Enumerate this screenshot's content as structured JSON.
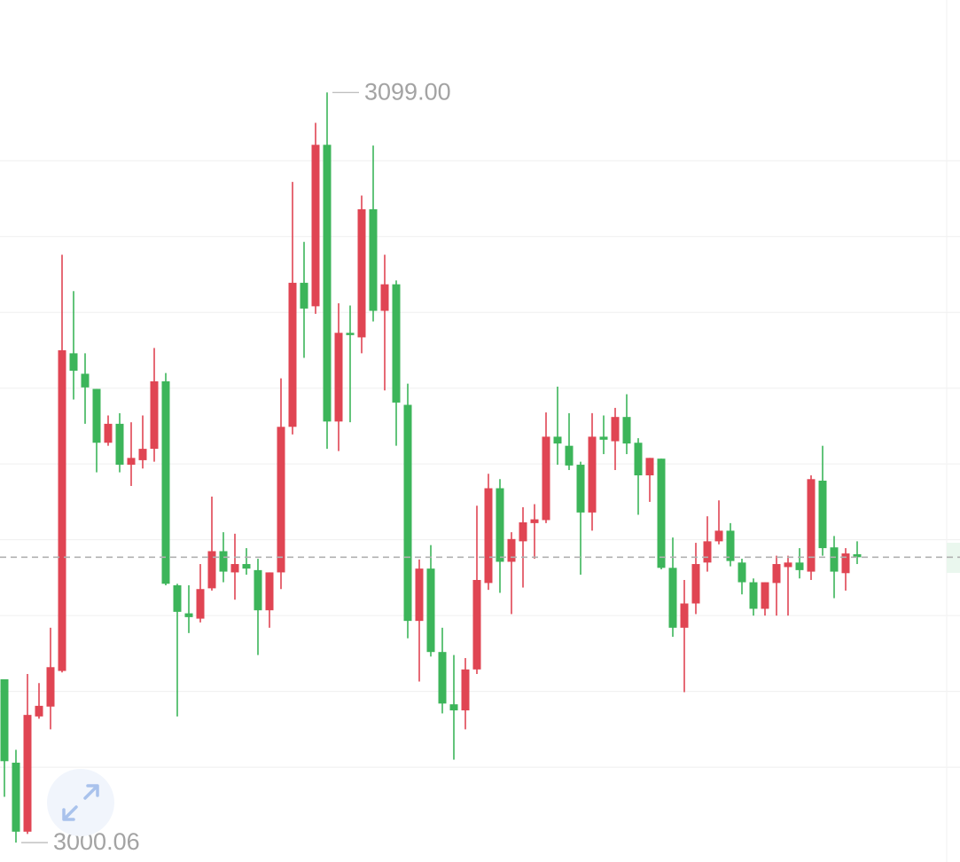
{
  "chart_data": {
    "type": "candlestick",
    "up_color": "#e04553",
    "down_color": "#3cb55a",
    "ylim": [
      2997.5,
      3111.2
    ],
    "grid_lines": [
      3010,
      3020,
      3030,
      3040,
      3050,
      3060,
      3070,
      3080,
      3090
    ],
    "grid": true,
    "open": [
      3021.6,
      3010.6,
      3001.5,
      3016.7,
      3018.0,
      3022.7,
      3064.6,
      3061.9,
      3059.9,
      3052.8,
      3055.3,
      3049.9,
      3050.5,
      3052.0,
      3060.9,
      3034.0,
      3030.3,
      3029.6,
      3033.6,
      3038.5,
      3035.7,
      3036.8,
      3036.0,
      3030.7,
      3035.7,
      3054.9,
      3073.9,
      3070.8,
      3092.1,
      3055.6,
      3067.3,
      3066.7,
      3083.6,
      3070.2,
      3073.7,
      3057.8,
      3029.3,
      3036.2,
      3025.2,
      3018.3,
      3017.5,
      3022.9,
      3034.3,
      3046.8,
      3037.1,
      3039.8,
      3042.2,
      3042.6,
      3053.6,
      3052.4,
      3049.9,
      3043.6,
      3053.6,
      3053.0,
      3056.2,
      3052.8,
      3048.5,
      3050.7,
      3036.3,
      3028.4,
      3031.6,
      3037.0,
      3039.8,
      3041.2,
      3037.0,
      3034.4,
      3030.9,
      3034.3,
      3036.4,
      3037.0,
      3035.8,
      3047.8,
      3039.0,
      3035.6,
      3038.1
    ],
    "high": [
      3021.6,
      3012.3,
      3022.3,
      3021.1,
      3028.4,
      3077.6,
      3072.8,
      3064.6,
      3059.9,
      3056.4,
      3056.7,
      3055.5,
      3056.4,
      3065.3,
      3062.0,
      3034.2,
      3034.0,
      3036.8,
      3045.7,
      3041.0,
      3040.8,
      3038.9,
      3037.5,
      3035.7,
      3061.3,
      3087.2,
      3079.3,
      3095.0,
      3099.0,
      3071.2,
      3070.9,
      3085.4,
      3092.0,
      3077.6,
      3074.2,
      3060.6,
      3037.4,
      3039.3,
      3028.4,
      3024.8,
      3024.4,
      3044.5,
      3048.7,
      3048.0,
      3041.0,
      3044.3,
      3044.7,
      3056.8,
      3060.2,
      3056.7,
      3050.3,
      3056.7,
      3056.4,
      3057.4,
      3059.2,
      3053.4,
      3050.8,
      3050.7,
      3040.3,
      3034.7,
      3039.6,
      3043.1,
      3045.2,
      3042.2,
      3037.5,
      3034.9,
      3034.4,
      3037.9,
      3037.9,
      3038.9,
      3048.5,
      3052.4,
      3040.5,
      3038.9,
      3039.8
    ],
    "low": [
      3006.1,
      3000.06,
      3001.2,
      3016.4,
      3015.0,
      3022.5,
      3058.5,
      3055.3,
      3048.9,
      3052.4,
      3048.9,
      3047.1,
      3049.4,
      3050.3,
      3034.0,
      3016.7,
      3027.7,
      3029.1,
      3033.3,
      3034.4,
      3032.1,
      3035.4,
      3024.8,
      3028.4,
      3033.5,
      3053.9,
      3064.0,
      3069.8,
      3052.0,
      3051.7,
      3055.5,
      3064.6,
      3068.8,
      3059.7,
      3052.4,
      3027.0,
      3021.3,
      3024.6,
      3017.1,
      3011.0,
      3015.0,
      3022.3,
      3033.4,
      3033.0,
      3030.2,
      3033.7,
      3037.5,
      3042.2,
      3049.9,
      3049.2,
      3035.4,
      3041.2,
      3051.3,
      3049.2,
      3051.3,
      3043.3,
      3045.0,
      3036.1,
      3027.2,
      3019.9,
      3030.2,
      3035.8,
      3039.4,
      3036.5,
      3032.8,
      3030.0,
      3030.0,
      3030.0,
      3030.0,
      3034.9,
      3034.7,
      3037.9,
      3032.3,
      3033.3,
      3036.8
    ],
    "close": [
      3010.8,
      3001.5,
      3016.9,
      3018.1,
      3023.2,
      3065.0,
      3062.3,
      3060.1,
      3052.8,
      3055.3,
      3049.9,
      3050.8,
      3052.0,
      3060.9,
      3034.2,
      3030.5,
      3029.8,
      3033.5,
      3038.5,
      3035.8,
      3036.8,
      3036.2,
      3030.7,
      3035.7,
      3054.9,
      3073.9,
      3070.5,
      3092.1,
      3055.6,
      3067.3,
      3067.0,
      3083.6,
      3070.2,
      3073.7,
      3058.1,
      3029.3,
      3036.2,
      3025.2,
      3018.4,
      3017.5,
      3022.9,
      3034.7,
      3046.8,
      3037.1,
      3040.1,
      3042.3,
      3042.7,
      3053.6,
      3052.7,
      3049.8,
      3043.6,
      3053.6,
      3053.2,
      3056.2,
      3052.7,
      3048.5,
      3050.8,
      3036.3,
      3028.4,
      3031.6,
      3036.8,
      3039.8,
      3041.2,
      3037.2,
      3034.4,
      3030.9,
      3034.4,
      3036.8,
      3037.0,
      3036.0,
      3048.0,
      3038.9,
      3035.8,
      3038.2,
      3037.7
    ],
    "annotations": [
      {
        "value": 3099.0,
        "label": "3099.00",
        "of": "high"
      },
      {
        "value": 3000.06,
        "label": "3000.06",
        "of": "low"
      }
    ]
  }
}
